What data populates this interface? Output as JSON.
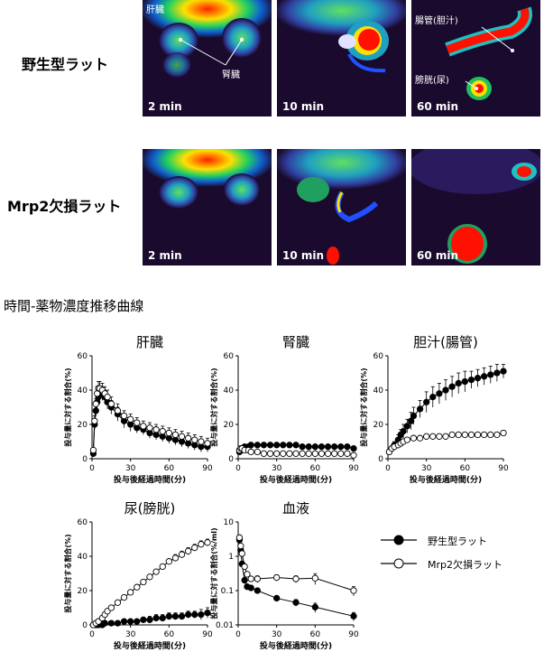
{
  "rows": [
    {
      "label": "野生型ラット",
      "panels": [
        {
          "time": "2 min",
          "annotations": [
            "肝臓",
            "腎臓"
          ]
        },
        {
          "time": "10 min",
          "annotations": []
        },
        {
          "time": "60 min",
          "annotations": [
            "腸管(胆汁)",
            "膀胱(尿)"
          ]
        }
      ]
    },
    {
      "label": "Mrp2欠損ラット",
      "panels": [
        {
          "time": "2 min",
          "annotations": []
        },
        {
          "time": "10 min",
          "annotations": []
        },
        {
          "time": "60 min",
          "annotations": []
        }
      ]
    }
  ],
  "section_title": "時間-薬物濃度推移曲線",
  "legend": {
    "wildtype": {
      "label": "野生型ラット",
      "marker": "filled-circle"
    },
    "mrp2": {
      "label": "Mrp2欠損ラット",
      "marker": "open-circle"
    }
  },
  "colors": {
    "filled": "#000000",
    "open": "#ffffff",
    "pet_bg": "#1a0a2e"
  },
  "chart_data": [
    {
      "type": "line",
      "title": "肝臓",
      "xlabel": "投与後経過時間(分)",
      "ylabel": "投与量に対する割合(%)",
      "xlim": [
        0,
        90
      ],
      "ylim": [
        0,
        60
      ],
      "xticks": [
        0,
        30,
        60,
        90
      ],
      "yticks": [
        0,
        20,
        40,
        60
      ],
      "xtick_labels": [
        "0",
        "30",
        "60",
        "90"
      ],
      "ytick_labels": [
        "0",
        "20",
        "40",
        "60"
      ],
      "yscale": "linear",
      "series": [
        {
          "marker": "filled",
          "x": [
            1,
            2,
            3,
            4,
            5,
            6,
            8,
            10,
            12,
            15,
            20,
            25,
            30,
            35,
            40,
            45,
            50,
            55,
            60,
            65,
            70,
            75,
            80,
            85,
            90
          ],
          "y": [
            3,
            20,
            28,
            33,
            36,
            38,
            38,
            36,
            33,
            30,
            26,
            22,
            20,
            18,
            17,
            15,
            14,
            13,
            12,
            11,
            10,
            9,
            8,
            7,
            7
          ],
          "err": [
            1,
            3,
            3,
            4,
            4,
            4,
            4,
            4,
            4,
            4,
            4,
            4,
            4,
            3,
            3,
            3,
            3,
            3,
            3,
            3,
            3,
            3,
            3,
            3,
            3
          ]
        },
        {
          "marker": "open",
          "x": [
            1,
            2,
            3,
            4,
            5,
            6,
            8,
            10,
            12,
            15,
            20,
            25,
            30,
            35,
            40,
            45,
            50,
            55,
            60,
            65,
            70,
            75,
            80,
            85,
            90
          ],
          "y": [
            5,
            22,
            32,
            38,
            41,
            41,
            40,
            38,
            36,
            32,
            28,
            25,
            23,
            21,
            19,
            18,
            17,
            16,
            15,
            14,
            13,
            12,
            11,
            10,
            9
          ],
          "err": [
            1,
            3,
            3,
            4,
            4,
            4,
            4,
            4,
            4,
            4,
            4,
            3,
            3,
            3,
            3,
            3,
            3,
            3,
            3,
            3,
            3,
            3,
            3,
            3,
            3
          ]
        }
      ]
    },
    {
      "type": "line",
      "title": "腎臓",
      "xlabel": "投与後経過時間(分)",
      "ylabel": "投与量に対する割合(%)",
      "xlim": [
        0,
        90
      ],
      "ylim": [
        0,
        60
      ],
      "xticks": [
        0,
        30,
        60,
        90
      ],
      "yticks": [
        0,
        20,
        40,
        60
      ],
      "xtick_labels": [
        "0",
        "30",
        "60",
        "90"
      ],
      "ytick_labels": [
        "0",
        "20",
        "40",
        "60"
      ],
      "yscale": "linear",
      "series": [
        {
          "marker": "filled",
          "x": [
            1,
            2,
            3,
            5,
            8,
            10,
            15,
            20,
            25,
            30,
            35,
            40,
            45,
            50,
            55,
            60,
            65,
            70,
            75,
            80,
            85,
            90
          ],
          "y": [
            4,
            5,
            6,
            7,
            7,
            8,
            8,
            8,
            8,
            8,
            8,
            8,
            8,
            7,
            7,
            7,
            7,
            7,
            7,
            7,
            7,
            6
          ],
          "err": [
            1,
            1,
            1,
            1,
            1,
            1,
            1,
            1,
            1,
            1,
            1,
            1,
            1,
            1,
            1,
            1,
            1,
            1,
            1,
            1,
            1,
            1
          ]
        },
        {
          "marker": "open",
          "x": [
            1,
            2,
            3,
            5,
            8,
            10,
            15,
            20,
            25,
            30,
            35,
            40,
            45,
            50,
            55,
            60,
            65,
            70,
            75,
            80,
            85,
            90
          ],
          "y": [
            5,
            6,
            6,
            5,
            5,
            4,
            4,
            3,
            3,
            3,
            3,
            3,
            3,
            3,
            3,
            3,
            3,
            3,
            3,
            3,
            3,
            2
          ],
          "err": [
            1,
            1,
            1,
            1,
            1,
            1,
            1,
            1,
            1,
            1,
            1,
            1,
            1,
            1,
            1,
            1,
            1,
            1,
            1,
            1,
            1,
            1
          ]
        }
      ]
    },
    {
      "type": "line",
      "title": "胆汁(腸管)",
      "xlabel": "投与後経過時間(分)",
      "ylabel": "投与量に対する割合(%)",
      "xlim": [
        0,
        90
      ],
      "ylim": [
        0,
        60
      ],
      "xticks": [
        0,
        30,
        60,
        90
      ],
      "yticks": [
        0,
        20,
        40,
        60
      ],
      "xtick_labels": [
        "0",
        "30",
        "60",
        "90"
      ],
      "ytick_labels": [
        "0",
        "20",
        "40",
        "60"
      ],
      "yscale": "linear",
      "series": [
        {
          "marker": "filled",
          "x": [
            1,
            3,
            5,
            8,
            10,
            12,
            15,
            18,
            20,
            25,
            30,
            35,
            40,
            45,
            50,
            55,
            60,
            65,
            70,
            75,
            80,
            85,
            90
          ],
          "y": [
            4,
            6,
            8,
            11,
            14,
            16,
            19,
            22,
            25,
            29,
            33,
            36,
            38,
            40,
            42,
            44,
            45,
            46,
            47,
            48,
            49,
            50,
            51
          ],
          "err": [
            1,
            1,
            2,
            3,
            3,
            4,
            4,
            5,
            5,
            5,
            6,
            6,
            6,
            6,
            6,
            6,
            6,
            5,
            5,
            5,
            5,
            5,
            4
          ]
        },
        {
          "marker": "open",
          "x": [
            1,
            3,
            5,
            8,
            10,
            12,
            15,
            20,
            25,
            30,
            35,
            40,
            45,
            50,
            55,
            60,
            65,
            70,
            75,
            80,
            85,
            90
          ],
          "y": [
            4,
            6,
            7,
            8,
            9,
            10,
            11,
            12,
            12,
            13,
            13,
            13,
            13,
            14,
            14,
            14,
            14,
            14,
            14,
            14,
            14,
            15
          ],
          "err": [
            1,
            1,
            1,
            1,
            1,
            1,
            1,
            1,
            1,
            1,
            1,
            1,
            1,
            1,
            1,
            1,
            1,
            1,
            1,
            1,
            1,
            1
          ]
        }
      ]
    },
    {
      "type": "line",
      "title": "尿(膀胱)",
      "xlabel": "投与後経過時間(分)",
      "ylabel": "投与量に対する割合(%)",
      "xlim": [
        0,
        90
      ],
      "ylim": [
        0,
        60
      ],
      "xticks": [
        0,
        30,
        60,
        90
      ],
      "yticks": [
        0,
        20,
        40,
        60
      ],
      "xtick_labels": [
        "0",
        "30",
        "60",
        "90"
      ],
      "ytick_labels": [
        "0",
        "20",
        "40",
        "60"
      ],
      "yscale": "linear",
      "series": [
        {
          "marker": "filled",
          "x": [
            1,
            3,
            5,
            8,
            10,
            15,
            20,
            25,
            30,
            35,
            40,
            45,
            50,
            55,
            60,
            65,
            70,
            75,
            80,
            85,
            90
          ],
          "y": [
            0,
            0,
            0,
            0,
            1,
            1,
            1,
            2,
            2,
            2,
            3,
            3,
            4,
            4,
            5,
            5,
            5,
            6,
            6,
            6,
            7
          ],
          "err": [
            0,
            0,
            0,
            0,
            0,
            1,
            1,
            1,
            1,
            1,
            1,
            2,
            2,
            2,
            2,
            2,
            2,
            2,
            2,
            3,
            3
          ]
        },
        {
          "marker": "open",
          "x": [
            1,
            3,
            5,
            8,
            10,
            12,
            15,
            20,
            25,
            30,
            35,
            40,
            45,
            50,
            55,
            60,
            65,
            70,
            75,
            80,
            85,
            90
          ],
          "y": [
            0,
            1,
            2,
            4,
            6,
            8,
            10,
            13,
            16,
            19,
            22,
            25,
            28,
            31,
            34,
            37,
            39,
            41,
            43,
            45,
            47,
            48
          ],
          "err": [
            0,
            0,
            1,
            1,
            1,
            1,
            1,
            1,
            1,
            1,
            1,
            1,
            1,
            1,
            1,
            1,
            2,
            2,
            2,
            2,
            2,
            2
          ]
        }
      ]
    },
    {
      "type": "line",
      "title": "血液",
      "xlabel": "投与後経過時間(分)",
      "ylabel": "投与量に対する割合(%/ml)",
      "xlim": [
        0,
        90
      ],
      "ylim": [
        0.01,
        10
      ],
      "xticks": [
        0,
        30,
        60,
        90
      ],
      "yticks": [
        0.01,
        0.1,
        1,
        10
      ],
      "xtick_labels": [
        "0",
        "30",
        "60",
        "90"
      ],
      "ytick_labels": [
        "0.01",
        "0.1",
        "1",
        "10"
      ],
      "yscale": "log",
      "series": [
        {
          "marker": "filled",
          "x": [
            1,
            2,
            3,
            5,
            7,
            10,
            15,
            30,
            45,
            60,
            90
          ],
          "y": [
            3,
            1.5,
            0.6,
            0.2,
            0.13,
            0.12,
            0.1,
            0.06,
            0.045,
            0.033,
            0.018
          ],
          "err": [
            0,
            0,
            0,
            0,
            0,
            0,
            0,
            0,
            0.01,
            0.01,
            0.005
          ]
        },
        {
          "marker": "open",
          "x": [
            1,
            2,
            3,
            5,
            7,
            10,
            15,
            30,
            45,
            60,
            90
          ],
          "y": [
            3.5,
            2,
            1.2,
            0.5,
            0.3,
            0.22,
            0.22,
            0.24,
            0.22,
            0.23,
            0.1
          ],
          "err": [
            0,
            0,
            0,
            0,
            0,
            0,
            0.05,
            0.05,
            0.05,
            0.08,
            0.03
          ]
        }
      ]
    }
  ]
}
